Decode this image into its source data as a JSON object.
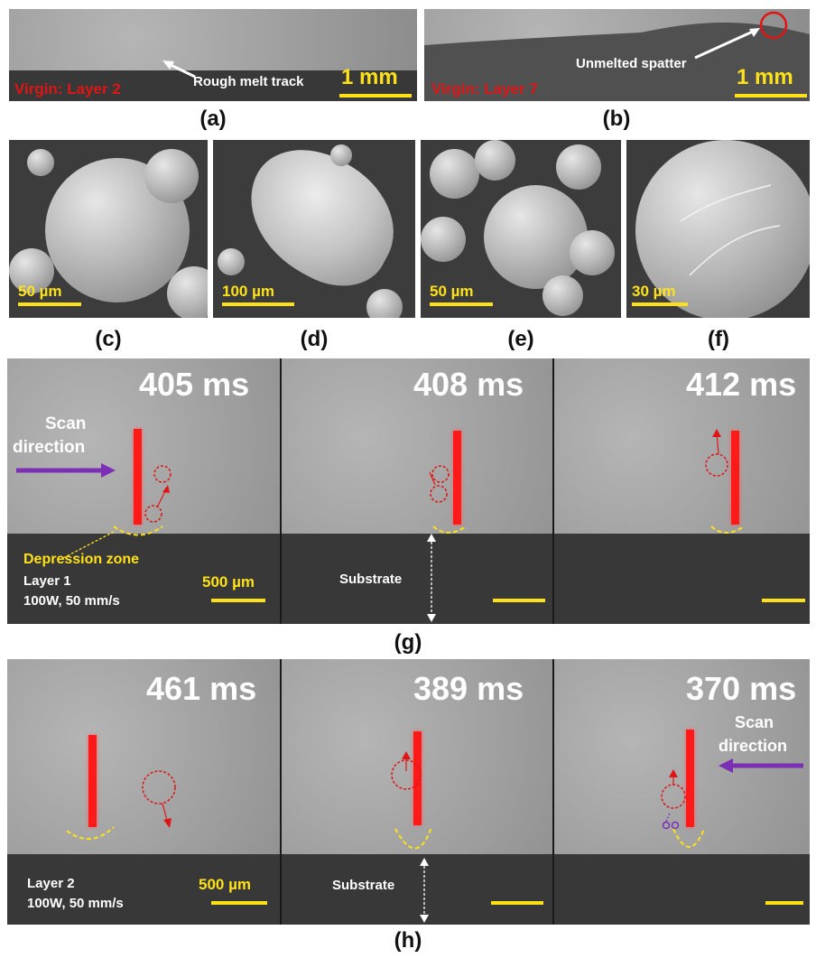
{
  "panel_a": {
    "label": "(a)",
    "tag": "Virgin: Layer 2",
    "annotation": "Rough melt track",
    "scale": "1 mm"
  },
  "panel_b": {
    "label": "(b)",
    "tag": "Virgin: Layer 7",
    "annotation": "Unmelted spatter",
    "scale": "1 mm"
  },
  "sem": [
    {
      "label": "(c)",
      "scale": "50 µm"
    },
    {
      "label": "(d)",
      "scale": "100 µm"
    },
    {
      "label": "(e)",
      "scale": "50 µm"
    },
    {
      "label": "(f)",
      "scale": "30 µm"
    }
  ],
  "panel_g": {
    "label": "(g)",
    "times": [
      "405 ms",
      "408 ms",
      "412 ms"
    ],
    "scan_direction": "Scan direction",
    "scan_line1": "Scan",
    "scan_line2": "direction",
    "depression": "Depression zone",
    "layer": "Layer 1",
    "params": "100W, 50 mm/s",
    "scale": "500 µm",
    "substrate": "Substrate"
  },
  "panel_h": {
    "label": "(h)",
    "times": [
      "461 ms",
      "389 ms",
      "370 ms"
    ],
    "scan_line1": "Scan",
    "scan_line2": "direction",
    "layer": "Layer 2",
    "params": "100W, 50 mm/s",
    "scale": "500 µm",
    "substrate": "Substrate"
  },
  "colors": {
    "laser": "#ff1a1a",
    "scale_bar": "#ffe11a",
    "tag_red": "#e01414",
    "arrow_purple": "#7a2fb5"
  }
}
